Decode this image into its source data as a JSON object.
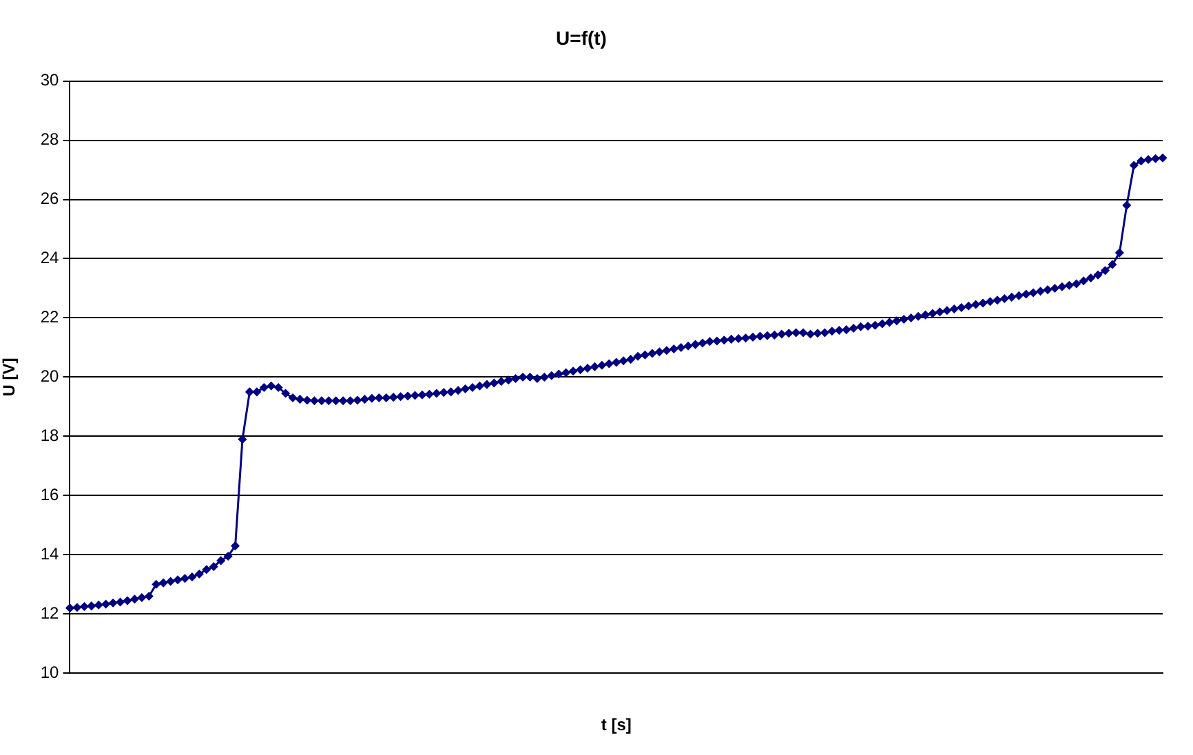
{
  "chart_data": {
    "type": "line",
    "title": "U=f(t)",
    "xlabel": "t [s]",
    "ylabel": "U [V]",
    "categories": [
      null,
      null,
      null,
      null,
      null,
      null,
      null,
      null,
      null,
      null,
      null,
      null,
      null,
      null,
      null,
      null,
      null,
      null,
      null,
      null,
      null,
      null,
      null,
      null,
      null,
      null,
      null,
      null,
      null,
      null,
      null,
      null,
      null,
      null,
      null,
      null,
      null,
      null,
      null,
      null,
      null,
      null,
      null,
      null,
      null,
      null,
      null,
      null,
      null,
      null,
      null,
      null,
      null,
      null,
      null,
      null,
      null,
      null,
      null,
      null,
      null,
      null,
      null,
      null,
      null,
      null,
      null,
      null,
      null,
      null,
      null,
      null,
      null,
      null,
      null,
      null,
      null,
      null,
      null,
      null,
      null,
      null,
      null,
      null,
      null,
      null,
      null,
      null,
      null,
      null,
      null,
      null,
      null,
      null,
      null,
      null,
      null,
      null,
      null,
      null,
      null,
      null,
      null,
      null,
      null,
      null,
      null,
      null,
      null,
      null,
      null,
      null,
      null,
      null,
      null,
      null,
      null,
      null,
      null,
      null,
      null,
      null,
      null,
      null,
      null,
      null,
      null,
      null,
      null,
      null,
      null,
      null,
      null,
      null,
      null,
      null,
      null,
      null,
      null,
      null,
      null,
      null,
      null,
      null,
      null,
      null,
      null,
      null,
      null,
      null,
      null,
      null,
      null
    ],
    "series": [
      {
        "color": "#000080",
        "values": [
          12.2,
          12.22,
          12.25,
          12.27,
          12.3,
          12.33,
          12.37,
          12.4,
          12.45,
          12.5,
          12.55,
          12.6,
          13.0,
          13.05,
          13.1,
          13.15,
          13.2,
          13.25,
          13.35,
          13.5,
          13.6,
          13.8,
          13.95,
          14.3,
          17.9,
          19.5,
          19.5,
          19.65,
          19.7,
          19.65,
          19.45,
          19.3,
          19.25,
          19.22,
          19.2,
          19.2,
          19.2,
          19.2,
          19.2,
          19.2,
          19.22,
          19.25,
          19.28,
          19.3,
          19.3,
          19.32,
          19.34,
          19.36,
          19.38,
          19.4,
          19.42,
          19.45,
          19.48,
          19.5,
          19.55,
          19.6,
          19.65,
          19.7,
          19.75,
          19.8,
          19.85,
          19.9,
          19.95,
          20.0,
          20.0,
          19.95,
          20.0,
          20.05,
          20.1,
          20.15,
          20.2,
          20.25,
          20.3,
          20.35,
          20.4,
          20.45,
          20.5,
          20.55,
          20.6,
          20.7,
          20.75,
          20.8,
          20.85,
          20.9,
          20.95,
          21.0,
          21.05,
          21.1,
          21.15,
          21.2,
          21.22,
          21.25,
          21.28,
          21.3,
          21.32,
          21.35,
          21.38,
          21.4,
          21.42,
          21.45,
          21.48,
          21.5,
          21.5,
          21.45,
          21.48,
          21.5,
          21.55,
          21.58,
          21.6,
          21.65,
          21.7,
          21.72,
          21.75,
          21.8,
          21.85,
          21.9,
          21.95,
          22.0,
          22.05,
          22.1,
          22.15,
          22.2,
          22.25,
          22.3,
          22.35,
          22.4,
          22.45,
          22.5,
          22.55,
          22.6,
          22.65,
          22.7,
          22.75,
          22.8,
          22.85,
          22.9,
          22.95,
          23.0,
          23.05,
          23.1,
          23.15,
          23.25,
          23.35,
          23.45,
          23.6,
          23.8,
          24.2,
          25.8,
          27.15,
          27.3,
          27.35,
          27.38,
          27.4
        ]
      }
    ],
    "ylim": [
      10,
      30
    ],
    "yticks": [
      10,
      12,
      14,
      16,
      18,
      20,
      22,
      24,
      26,
      28,
      30
    ],
    "grid": "y",
    "marker": "diamond",
    "line_style": "solid"
  }
}
